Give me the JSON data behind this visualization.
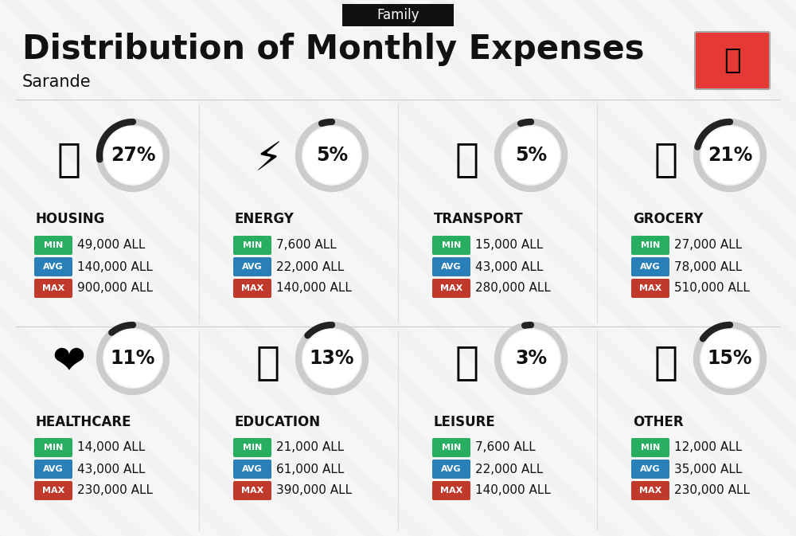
{
  "title": "Distribution of Monthly Expenses",
  "subtitle": "Sarande",
  "category_label": "Family",
  "background_color": "#f2f2f2",
  "header_bg": "#111111",
  "categories": [
    {
      "name": "HOUSING",
      "percent": 27,
      "min": "49,000 ALL",
      "avg": "140,000 ALL",
      "max": "900,000 ALL",
      "icon": "🏘",
      "row": 0,
      "col": 0
    },
    {
      "name": "ENERGY",
      "percent": 5,
      "min": "7,600 ALL",
      "avg": "22,000 ALL",
      "max": "140,000 ALL",
      "icon": "⚡",
      "row": 0,
      "col": 1
    },
    {
      "name": "TRANSPORT",
      "percent": 5,
      "min": "15,000 ALL",
      "avg": "43,000 ALL",
      "max": "280,000 ALL",
      "icon": "🚌",
      "row": 0,
      "col": 2
    },
    {
      "name": "GROCERY",
      "percent": 21,
      "min": "27,000 ALL",
      "avg": "78,000 ALL",
      "max": "510,000 ALL",
      "icon": "🛒",
      "row": 0,
      "col": 3
    },
    {
      "name": "HEALTHCARE",
      "percent": 11,
      "min": "14,000 ALL",
      "avg": "43,000 ALL",
      "max": "230,000 ALL",
      "icon": "❤️",
      "row": 1,
      "col": 0
    },
    {
      "name": "EDUCATION",
      "percent": 13,
      "min": "21,000 ALL",
      "avg": "61,000 ALL",
      "max": "390,000 ALL",
      "icon": "🎓",
      "row": 1,
      "col": 1
    },
    {
      "name": "LEISURE",
      "percent": 3,
      "min": "7,600 ALL",
      "avg": "22,000 ALL",
      "max": "140,000 ALL",
      "icon": "🛍️",
      "row": 1,
      "col": 2
    },
    {
      "name": "OTHER",
      "percent": 15,
      "min": "12,000 ALL",
      "avg": "35,000 ALL",
      "max": "230,000 ALL",
      "icon": "👛",
      "row": 1,
      "col": 3
    }
  ],
  "min_color": "#27ae60",
  "avg_color": "#2980b9",
  "max_color": "#c0392b",
  "text_color": "#111111",
  "arc_color": "#222222",
  "arc_bg_color": "#cccccc",
  "title_fontsize": 30,
  "subtitle_fontsize": 15,
  "category_fontsize": 12,
  "percent_fontsize": 17,
  "value_fontsize": 11,
  "badge_fontsize": 8
}
